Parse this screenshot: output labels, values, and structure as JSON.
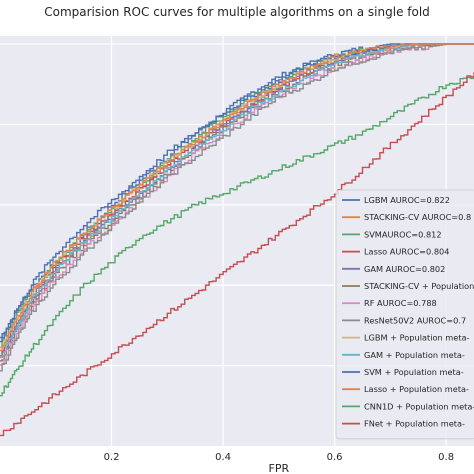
{
  "chart_data": {
    "type": "line",
    "title": "Comparision ROC curves for multiple algorithms on a single fold",
    "xlabel": "FPR",
    "ylabel": "",
    "xlim": [
      0.0,
      0.85
    ],
    "ylim": [
      0.0,
      1.02
    ],
    "xticks": [
      "0.2",
      "0.4",
      "0.6",
      "0.8"
    ],
    "xtick_values": [
      0.2,
      0.4,
      0.6,
      0.8
    ],
    "grid": true,
    "background": "#eaeaf2",
    "legend_position": "lower-right",
    "series": [
      {
        "name": "LGBM AUROC=0.822",
        "color": "#4c72b0",
        "x": [
          0.0,
          0.03,
          0.06,
          0.1,
          0.15,
          0.2,
          0.25,
          0.3,
          0.35,
          0.4,
          0.45,
          0.5,
          0.55,
          0.6,
          0.65,
          0.7,
          0.75,
          0.8,
          0.85
        ],
        "y": [
          0.27,
          0.34,
          0.4,
          0.46,
          0.53,
          0.6,
          0.66,
          0.72,
          0.78,
          0.83,
          0.88,
          0.92,
          0.95,
          0.975,
          0.99,
          1.0,
          1.0,
          1.0,
          1.0
        ]
      },
      {
        "name": "STACKING-CV AUROC=0.8",
        "color": "#dd8452",
        "x": [
          0.0,
          0.03,
          0.06,
          0.1,
          0.15,
          0.2,
          0.25,
          0.3,
          0.35,
          0.4,
          0.45,
          0.5,
          0.55,
          0.6,
          0.65,
          0.7,
          0.75,
          0.8,
          0.85
        ],
        "y": [
          0.22,
          0.3,
          0.37,
          0.44,
          0.51,
          0.58,
          0.64,
          0.7,
          0.76,
          0.81,
          0.86,
          0.9,
          0.94,
          0.965,
          0.98,
          0.99,
          1.0,
          1.0,
          1.0
        ]
      },
      {
        "name": "SVMAUROC=0.812",
        "color": "#55a868",
        "x": [
          0.0,
          0.03,
          0.06,
          0.1,
          0.15,
          0.2,
          0.25,
          0.3,
          0.35,
          0.4,
          0.45,
          0.5,
          0.55,
          0.6,
          0.65,
          0.7,
          0.75,
          0.8,
          0.85
        ],
        "y": [
          0.25,
          0.33,
          0.39,
          0.46,
          0.53,
          0.59,
          0.65,
          0.71,
          0.77,
          0.82,
          0.87,
          0.91,
          0.94,
          0.97,
          0.985,
          0.995,
          1.0,
          1.0,
          1.0
        ]
      },
      {
        "name": "Lasso AUROC=0.804",
        "color": "#c44e52",
        "x": [
          0.0,
          0.03,
          0.06,
          0.1,
          0.15,
          0.2,
          0.25,
          0.3,
          0.35,
          0.4,
          0.45,
          0.5,
          0.55,
          0.6,
          0.65,
          0.7,
          0.75,
          0.8,
          0.85
        ],
        "y": [
          0.23,
          0.31,
          0.38,
          0.45,
          0.52,
          0.58,
          0.64,
          0.7,
          0.75,
          0.8,
          0.85,
          0.89,
          0.93,
          0.96,
          0.98,
          0.99,
          1.0,
          1.0,
          1.0
        ]
      },
      {
        "name": "GAM AUROC=0.802",
        "color": "#8172b3",
        "x": [
          0.0,
          0.03,
          0.06,
          0.1,
          0.15,
          0.2,
          0.25,
          0.3,
          0.35,
          0.4,
          0.45,
          0.5,
          0.55,
          0.6,
          0.65,
          0.7,
          0.75,
          0.8,
          0.85
        ],
        "y": [
          0.22,
          0.3,
          0.37,
          0.44,
          0.51,
          0.57,
          0.63,
          0.69,
          0.75,
          0.8,
          0.85,
          0.89,
          0.93,
          0.96,
          0.975,
          0.99,
          1.0,
          1.0,
          1.0
        ]
      },
      {
        "name": "STACKING-CV + Population",
        "color": "#937860",
        "x": [
          0.0,
          0.03,
          0.06,
          0.1,
          0.15,
          0.2,
          0.25,
          0.3,
          0.35,
          0.4,
          0.45,
          0.5,
          0.55,
          0.6,
          0.65,
          0.7,
          0.75,
          0.8,
          0.85
        ],
        "y": [
          0.21,
          0.29,
          0.36,
          0.43,
          0.5,
          0.56,
          0.62,
          0.68,
          0.74,
          0.79,
          0.84,
          0.88,
          0.92,
          0.95,
          0.97,
          0.985,
          0.995,
          1.0,
          1.0
        ]
      },
      {
        "name": "RF AUROC=0.788",
        "color": "#da8bc3",
        "x": [
          0.0,
          0.03,
          0.06,
          0.1,
          0.15,
          0.2,
          0.25,
          0.3,
          0.35,
          0.4,
          0.45,
          0.5,
          0.55,
          0.6,
          0.65,
          0.7,
          0.75,
          0.8,
          0.85
        ],
        "y": [
          0.2,
          0.28,
          0.35,
          0.42,
          0.49,
          0.55,
          0.61,
          0.67,
          0.73,
          0.78,
          0.83,
          0.87,
          0.91,
          0.94,
          0.965,
          0.98,
          0.99,
          1.0,
          1.0
        ]
      },
      {
        "name": "ResNet50V2 AUROC=0.7",
        "color": "#8c8c8c",
        "x": [
          0.0,
          0.03,
          0.06,
          0.1,
          0.15,
          0.2,
          0.25,
          0.3,
          0.35,
          0.4,
          0.45,
          0.5,
          0.55,
          0.6,
          0.65,
          0.7,
          0.75,
          0.8,
          0.85
        ],
        "y": [
          0.19,
          0.27,
          0.34,
          0.41,
          0.48,
          0.55,
          0.61,
          0.67,
          0.72,
          0.77,
          0.82,
          0.87,
          0.9,
          0.94,
          0.96,
          0.98,
          0.99,
          1.0,
          1.0
        ]
      },
      {
        "name": "LGBM + Population meta-",
        "color": "#ccb974",
        "x": [
          0.0,
          0.03,
          0.06,
          0.1,
          0.15,
          0.2,
          0.25,
          0.3,
          0.35,
          0.4,
          0.45,
          0.5,
          0.55,
          0.6,
          0.65,
          0.7,
          0.75,
          0.8,
          0.85
        ],
        "y": [
          0.24,
          0.32,
          0.39,
          0.46,
          0.53,
          0.59,
          0.65,
          0.71,
          0.76,
          0.81,
          0.86,
          0.9,
          0.94,
          0.965,
          0.98,
          0.99,
          1.0,
          1.0,
          1.0
        ]
      },
      {
        "name": "GAM + Population meta-",
        "color": "#64b5cd",
        "x": [
          0.0,
          0.03,
          0.06,
          0.1,
          0.15,
          0.2,
          0.25,
          0.3,
          0.35,
          0.4,
          0.45,
          0.5,
          0.55,
          0.6,
          0.65,
          0.7,
          0.75,
          0.8,
          0.85
        ],
        "y": [
          0.22,
          0.3,
          0.37,
          0.44,
          0.51,
          0.57,
          0.63,
          0.69,
          0.74,
          0.79,
          0.84,
          0.88,
          0.92,
          0.955,
          0.975,
          0.99,
          1.0,
          1.0,
          1.0
        ]
      },
      {
        "name": "SVM + Population meta-",
        "color": "#4c72b0",
        "x": [
          0.0,
          0.03,
          0.06,
          0.1,
          0.15,
          0.2,
          0.25,
          0.3,
          0.35,
          0.4,
          0.45,
          0.5,
          0.55,
          0.6,
          0.65,
          0.7,
          0.75,
          0.8,
          0.85
        ],
        "y": [
          0.26,
          0.34,
          0.41,
          0.48,
          0.55,
          0.61,
          0.67,
          0.73,
          0.78,
          0.83,
          0.87,
          0.91,
          0.95,
          0.97,
          0.985,
          0.995,
          1.0,
          1.0,
          1.0
        ]
      },
      {
        "name": "Lasso + Population meta-",
        "color": "#dd8452",
        "x": [
          0.0,
          0.03,
          0.06,
          0.1,
          0.15,
          0.2,
          0.25,
          0.3,
          0.35,
          0.4,
          0.45,
          0.5,
          0.55,
          0.6,
          0.65,
          0.7,
          0.75,
          0.8,
          0.85
        ],
        "y": [
          0.24,
          0.32,
          0.39,
          0.46,
          0.53,
          0.59,
          0.65,
          0.71,
          0.76,
          0.81,
          0.86,
          0.9,
          0.94,
          0.97,
          0.985,
          0.995,
          1.0,
          1.0,
          1.0
        ]
      },
      {
        "name": "CNN1D + Population meta-",
        "color": "#55a868",
        "x": [
          0.0,
          0.03,
          0.06,
          0.1,
          0.15,
          0.2,
          0.25,
          0.3,
          0.35,
          0.4,
          0.45,
          0.5,
          0.55,
          0.6,
          0.65,
          0.7,
          0.75,
          0.8,
          0.85
        ],
        "y": [
          0.13,
          0.19,
          0.25,
          0.32,
          0.4,
          0.46,
          0.52,
          0.56,
          0.6,
          0.63,
          0.66,
          0.69,
          0.72,
          0.75,
          0.78,
          0.82,
          0.86,
          0.9,
          0.92
        ]
      },
      {
        "name": "FNet + Population meta-",
        "color": "#c44e52",
        "x": [
          0.0,
          0.05,
          0.1,
          0.15,
          0.2,
          0.25,
          0.3,
          0.35,
          0.4,
          0.45,
          0.5,
          0.55,
          0.6,
          0.65,
          0.7,
          0.75,
          0.8,
          0.85
        ],
        "y": [
          0.03,
          0.08,
          0.13,
          0.18,
          0.23,
          0.28,
          0.33,
          0.38,
          0.43,
          0.48,
          0.53,
          0.58,
          0.63,
          0.69,
          0.75,
          0.81,
          0.87,
          0.93
        ]
      }
    ]
  }
}
